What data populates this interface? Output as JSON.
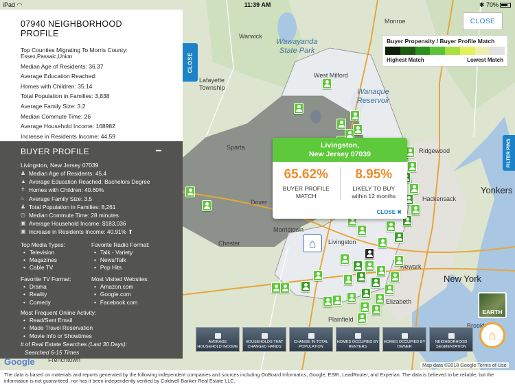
{
  "status_bar": {
    "device": "iPad",
    "time": "11:39 AM",
    "battery": "70%"
  },
  "neighborhood": {
    "title": "07940 NEIGHBORHOOD PROFILE",
    "top_counties_label": "Top Counties Migrating To Morris County:",
    "top_counties_value": "Essex,Passaic,Union",
    "stats": [
      "Median Age of Residents: 36.37",
      "Average Education Reached:",
      "Homes with Children: 35.14",
      "Total Population in Families: 3,838",
      "Average Family Size: 3.2",
      "Median Commute Time: 26",
      "Average Household Income: 168982",
      "Increase in Residents Income: 44.59"
    ],
    "close_tab": "CLOSE"
  },
  "buyer_profile": {
    "title": "BUYER PROFILE",
    "collapse": "−",
    "location": "Livingston, New Jersey 07039",
    "rows": [
      {
        "icon": "person-icon",
        "glyph": "♟",
        "text": "Median Age of Residents: 45.4"
      },
      {
        "icon": "education-icon",
        "glyph": "▲",
        "text": "Average Education Reached: Bachelors Degree"
      },
      {
        "icon": "children-icon",
        "glyph": "✝",
        "text": "Homes with Children: 40.60%"
      },
      {
        "icon": "home-icon",
        "glyph": "⌂",
        "text": "Average Family Size: 3.5"
      },
      {
        "icon": "family-icon",
        "glyph": "♟",
        "text": "Total Population in Families: 8,261"
      },
      {
        "icon": "clock-icon",
        "glyph": "◷",
        "text": "Median Commute Time: 28 minutes"
      },
      {
        "icon": "money-icon",
        "glyph": "▣",
        "text": "Average Household Income: $183,036"
      },
      {
        "icon": "money-up-icon",
        "glyph": "▣",
        "text": "Increase in Residents Income: 40.91% ⬆"
      }
    ],
    "media_title": "Top Media Types:",
    "media": [
      "Television",
      "Magazines",
      "Cable TV"
    ],
    "radio_title": "Favorite Radio Format:",
    "radio": [
      "Talk - Variety",
      "News/Talk",
      "Pop Hits"
    ],
    "tv_title": "Favorite TV Format:",
    "tv": [
      "Drama",
      "Reality",
      "Comedy"
    ],
    "web_title": "Most Visited Websites:",
    "web": [
      "Amazon.com",
      "Google.com",
      "Facebook.com"
    ],
    "online_title": "Most Frequent Online Activity:",
    "online": [
      "Read/Sent Email",
      "Made Travel Reservation",
      "Movie Info or Showtimes"
    ],
    "searches_title_prefix": "# of Real Estate Searches ",
    "searches_title_suffix": "(Last 30 Days):",
    "searches_value": "Searched 6-15 Times"
  },
  "popup": {
    "town": "Livingston,",
    "state_zip": "New Jersey 07039",
    "match_pct": "65.62%",
    "match_label_1": "BUYER PROFILE",
    "match_label_2": "MATCH",
    "likely_pct": "8.95%",
    "likely_label_1": "LIKELY TO BUY",
    "likely_label_2": "within 12 months",
    "close": "CLOSE ✖"
  },
  "close_button": "CLOSE",
  "legend": {
    "title": "Buyer Propensity / Buyer Profile Match",
    "colors": [
      "#0e200a",
      "#1f5a14",
      "#2f8f1e",
      "#5cc23a",
      "#a9de44",
      "#e3ef5c",
      "#eeeeb0",
      "#e2e2e2"
    ],
    "left": "Highest Match",
    "right": "Lowest Match"
  },
  "filter_tab": "FILTER PINS",
  "earth_button": "EARTH",
  "layers": [
    {
      "icon": "income-icon",
      "label": "AVERAGE HOUSEHOLD INCOME"
    },
    {
      "icon": "handshake-icon",
      "label": "HOUSEHOLDS THAT CHANGED HANDS"
    },
    {
      "icon": "population-icon",
      "label": "CHANGE IN TOTAL POPULATION"
    },
    {
      "icon": "renter-icon",
      "label": "HOMES OCCUPIED BY RENTERS"
    },
    {
      "icon": "owner-icon",
      "label": "HOMES OCCUPIED BY OWNER"
    },
    {
      "icon": "segmentation-icon",
      "label": "NEIGHBORHOOD SEGMENTATION"
    }
  ],
  "map_labels": {
    "wawayanda": "Wawayanda",
    "state_park": "State Park",
    "monroe": "Monroe",
    "warwick": "Warwick",
    "west_milford": "West Milford",
    "wanaque": "Wanaque",
    "reservoir": "Reservoir",
    "lafayette": "Lafayette",
    "township": "Township",
    "sparta": "Sparta",
    "dover": "Dover",
    "morristown": "Morristown",
    "chester": "Chester",
    "livingston": "Livingston",
    "plainfield": "Plainfield",
    "newark": "Newark",
    "elizabeth": "Elizabeth",
    "new_york": "New York",
    "yonkers": "Yonkers",
    "hackensack": "Hackensack",
    "ridgewood": "Ridgewood",
    "brooklyn": "Brooklyn",
    "frenchtown": "Frenchtown"
  },
  "map_attribution": "Map data ©2018 Google   Terms of Use",
  "google_logo": "Google",
  "footer": "The data is based on materials and reports generated by the following independent companies and sources including OnBoard Informatics, Google, ESRI, LeadRouter, and Experian. The data is believed to be reliable, but the information is not guaranteed, nor has it been independently verified by Coldwell Banker Real Estate LLC."
}
